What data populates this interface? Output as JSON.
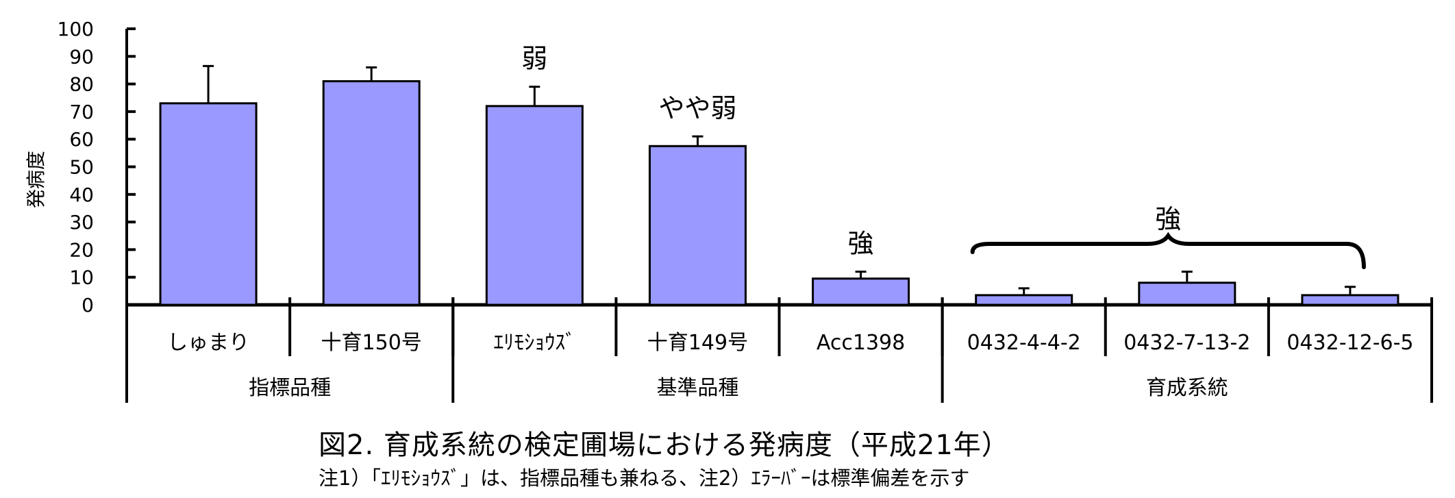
{
  "chart_data": {
    "type": "bar",
    "ylabel": "発病度",
    "ylim": [
      0,
      100
    ],
    "yticks": [
      0,
      10,
      20,
      30,
      40,
      50,
      60,
      70,
      80,
      90,
      100
    ],
    "bar_color": "#9999ff",
    "categories": [
      "しゅまり",
      "十育150号",
      "ｴﾘﾓｼｮｳｽﾞ",
      "十育149号",
      "Acc1398",
      "0432-4-4-2",
      "0432-7-13-2",
      "0432-12-6-5"
    ],
    "values": [
      73,
      81,
      72,
      57.5,
      9.5,
      3.5,
      8,
      3.5
    ],
    "errors": [
      13.5,
      5,
      7,
      3.5,
      2.5,
      2.5,
      4,
      3
    ],
    "groups": [
      {
        "label": "指標品種",
        "count": 2
      },
      {
        "label": "基準品種",
        "count": 3
      },
      {
        "label": "育成系統",
        "count": 3
      }
    ],
    "annotations": [
      {
        "text": "弱",
        "category_index": 2
      },
      {
        "text": "やや弱",
        "category_index": 3
      },
      {
        "text": "強",
        "category_index": 4
      },
      {
        "text": "強",
        "span": [
          5,
          7
        ],
        "brace": true
      }
    ],
    "grid": false,
    "legend": "none"
  },
  "caption": {
    "title": "図2. 育成系統の検定圃場における発病度（平成21年）",
    "note": "注1）「ｴﾘﾓｼｮｳｽﾞ」は、指標品種も兼ねる、注2）ｴﾗｰﾊﾞｰは標準偏差を示す"
  }
}
